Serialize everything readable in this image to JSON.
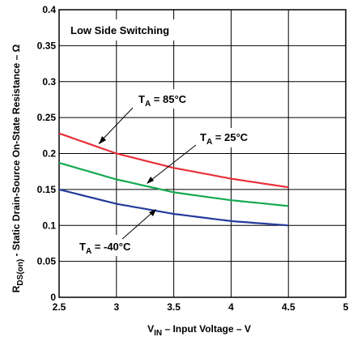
{
  "chart_data": {
    "type": "line",
    "title": "Low Side Switching",
    "xlabel": {
      "main": "V",
      "sub": "IN",
      "rest": " – Input Voltage – V"
    },
    "ylabel": {
      "main": "R",
      "sub": "DS(on)",
      "rest": " - Static Drain-Source On-State Resistance – Ω"
    },
    "xlim": [
      2.5,
      5
    ],
    "ylim": [
      0,
      0.4
    ],
    "x_ticks": [
      "2.5",
      "3",
      "3.5",
      "4",
      "4.5",
      "5"
    ],
    "y_ticks": [
      "0",
      "0.05",
      "0.1",
      "0.15",
      "0.2",
      "0.25",
      "0.3",
      "0.35",
      "0.4"
    ],
    "grid": true,
    "series": [
      {
        "name": {
          "main": "T",
          "sub": "A",
          "rest": " = 85°C"
        },
        "color": "#e8303a",
        "x": [
          2.5,
          3,
          3.5,
          4,
          4.5
        ],
        "y": [
          0.228,
          0.2,
          0.18,
          0.165,
          0.153
        ]
      },
      {
        "name": {
          "main": "T",
          "sub": "A",
          "rest": " = 25°C"
        },
        "color": "#16a951",
        "x": [
          2.5,
          3,
          3.5,
          4,
          4.5
        ],
        "y": [
          0.187,
          0.164,
          0.146,
          0.135,
          0.127
        ]
      },
      {
        "name": {
          "main": "T",
          "sub": "A",
          "rest": " = -40°C"
        },
        "color": "#253a9c",
        "x": [
          2.5,
          3,
          3.5,
          4,
          4.5
        ],
        "y": [
          0.15,
          0.13,
          0.116,
          0.106,
          0.1
        ]
      }
    ]
  }
}
